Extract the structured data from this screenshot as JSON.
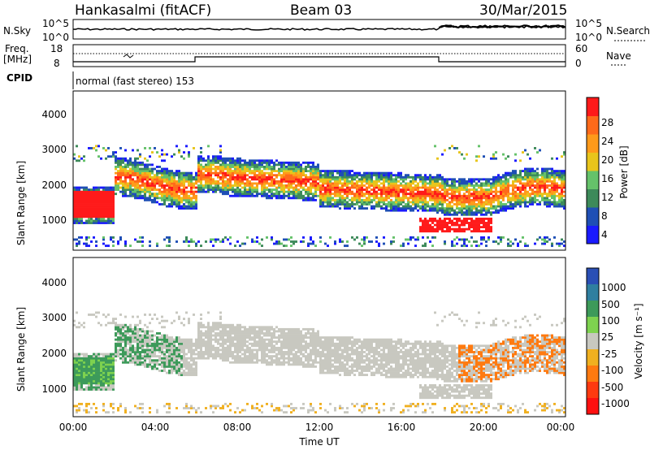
{
  "header": {
    "station": "Hankasalmi (fitACF)",
    "beam": "Beam 03",
    "date": "30/Mar/2015"
  },
  "noise_panel": {
    "left_label": "N.Sky",
    "right_label": "N.Search",
    "left_ticks": [
      "10^5",
      "10^0"
    ],
    "right_ticks": [
      "10^5",
      "10^0"
    ]
  },
  "freq_panel": {
    "left_label_line1": "Freq.",
    "left_label_line2": "[MHz]",
    "left_ticks": [
      "18",
      "8"
    ],
    "right_ticks": [
      "60",
      "0"
    ],
    "right_label": "Nave"
  },
  "cpid": {
    "label": "CPID",
    "text": "normal (fast stereo) 153"
  },
  "chart_data": [
    {
      "type": "heatmap",
      "name": "power",
      "ylabel": "Slant Range [km]",
      "y_ticks": [
        "1000",
        "2000",
        "3000",
        "4000"
      ],
      "ylim": [
        0,
        4600
      ],
      "colorbar": {
        "label": "Power [dB]",
        "ticks": [
          "4",
          "8",
          "12",
          "16",
          "20",
          "24",
          "28"
        ],
        "colors": [
          "#1a1aff",
          "#1f4fb5",
          "#3d8a5a",
          "#65c26a",
          "#e8c51b",
          "#ff9a1a",
          "#ff6a1a",
          "#ff1a1a"
        ]
      }
    },
    {
      "type": "heatmap",
      "name": "velocity",
      "ylabel": "Slant Range [km]",
      "y_ticks": [
        "1000",
        "2000",
        "3000",
        "4000"
      ],
      "ylim": [
        0,
        4600
      ],
      "colorbar": {
        "label": "Velocity [m s⁻¹]",
        "ticks": [
          "1000",
          "500",
          "100",
          "25",
          "-25",
          "-100",
          "-500",
          "-1000"
        ],
        "colors": [
          "#2a4fb5",
          "#2f7fa0",
          "#3d9a5a",
          "#7ed24f",
          "#c8c8c0",
          "#f0b020",
          "#ff7a10",
          "#ff3a10",
          "#ff1010"
        ]
      }
    }
  ],
  "time_axis": {
    "label": "Time UT",
    "ticks": [
      "00:00",
      "04:00",
      "08:00",
      "12:00",
      "16:00",
      "20:00",
      "00:00"
    ]
  }
}
